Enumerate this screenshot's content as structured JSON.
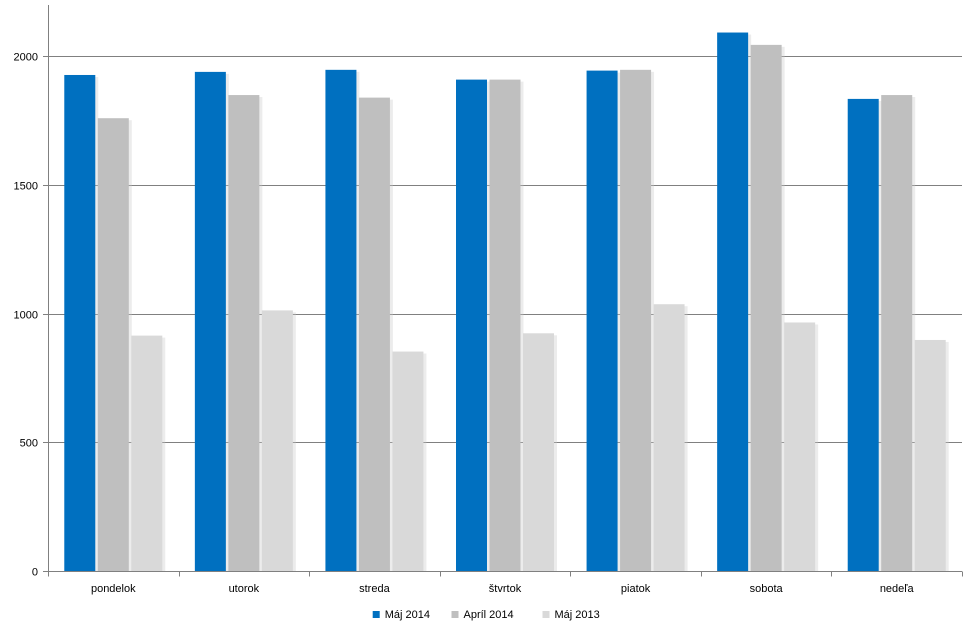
{
  "chart_data": {
    "type": "bar",
    "categories": [
      "pondelok",
      "utorok",
      "streda",
      "štvrtok",
      "piatok",
      "sobota",
      "nedeľa"
    ],
    "series": [
      {
        "name": "Máj 2014",
        "color": "#0070C0",
        "values": [
          1928,
          1940,
          1948,
          1910,
          1945,
          2093,
          1835
        ]
      },
      {
        "name": "Apríl 2014",
        "color": "#BFBFBF",
        "values": [
          1760,
          1850,
          1840,
          1910,
          1948,
          2045,
          1850
        ]
      },
      {
        "name": "Máj 2013",
        "color": "#D9D9D9",
        "values": [
          915,
          1013,
          853,
          924,
          1037,
          966,
          898
        ]
      }
    ],
    "y_ticks": [
      0,
      500,
      1000,
      1500,
      2000
    ],
    "ylim": [
      0,
      2200
    ],
    "grid": true,
    "legend_position": "bottom"
  }
}
